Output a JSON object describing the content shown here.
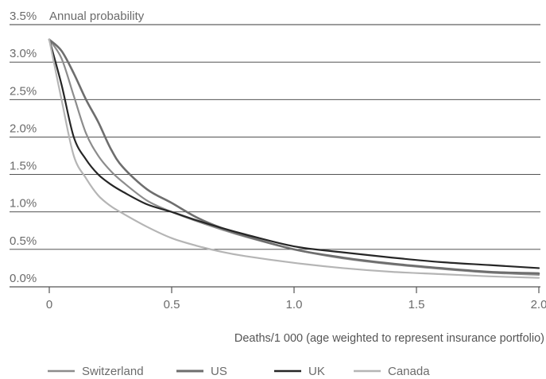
{
  "chart_data": {
    "type": "line",
    "ylabel": "Annual probability",
    "xlabel": "Deaths/1 000 (age weighted to represent insurance portfolio)",
    "xlim": [
      0,
      2.0
    ],
    "ylim": [
      0,
      3.5
    ],
    "x_ticks": [
      "0",
      "0.5",
      "1.0",
      "1.5",
      "2.0"
    ],
    "x_tick_values": [
      0,
      0.5,
      1.0,
      1.5,
      2.0
    ],
    "y_ticks": [
      "0.0%",
      "0.5%",
      "1.0%",
      "1.5%",
      "2.0%",
      "2.5%",
      "3.0%",
      "3.5%"
    ],
    "y_tick_values": [
      0,
      0.5,
      1.0,
      1.5,
      2.0,
      2.5,
      3.0,
      3.5
    ],
    "grid": "horizontal",
    "legend_position": "bottom",
    "series": [
      {
        "name": "Switzerland",
        "color": "#8c8c8c",
        "width": 2.2,
        "x": [
          0,
          0.05,
          0.1,
          0.15,
          0.2,
          0.25,
          0.3,
          0.4,
          0.5,
          0.6,
          0.7,
          0.8,
          1.0,
          1.2,
          1.4,
          1.6,
          1.8,
          2.0
        ],
        "y": [
          3.3,
          3.05,
          2.55,
          2.05,
          1.75,
          1.55,
          1.4,
          1.15,
          1.0,
          0.88,
          0.77,
          0.67,
          0.5,
          0.38,
          0.3,
          0.24,
          0.19,
          0.16
        ]
      },
      {
        "name": "US",
        "color": "#6e6e6e",
        "width": 2.6,
        "x": [
          0,
          0.05,
          0.1,
          0.15,
          0.2,
          0.25,
          0.3,
          0.4,
          0.5,
          0.6,
          0.7,
          0.8,
          1.0,
          1.2,
          1.4,
          1.6,
          1.8,
          2.0
        ],
        "y": [
          3.3,
          3.15,
          2.85,
          2.5,
          2.2,
          1.85,
          1.6,
          1.3,
          1.12,
          0.93,
          0.79,
          0.68,
          0.5,
          0.39,
          0.31,
          0.25,
          0.2,
          0.18
        ]
      },
      {
        "name": "UK",
        "color": "#262626",
        "width": 2.2,
        "x": [
          0,
          0.05,
          0.1,
          0.15,
          0.2,
          0.25,
          0.3,
          0.4,
          0.5,
          0.6,
          0.7,
          0.8,
          1.0,
          1.2,
          1.4,
          1.6,
          1.8,
          2.0
        ],
        "y": [
          3.3,
          2.7,
          2.0,
          1.7,
          1.5,
          1.37,
          1.27,
          1.1,
          1.0,
          0.89,
          0.79,
          0.7,
          0.54,
          0.46,
          0.39,
          0.33,
          0.29,
          0.25
        ]
      },
      {
        "name": "Canada",
        "color": "#b5b5b5",
        "width": 2.2,
        "x": [
          0,
          0.05,
          0.1,
          0.15,
          0.2,
          0.25,
          0.3,
          0.4,
          0.5,
          0.6,
          0.7,
          0.8,
          1.0,
          1.2,
          1.4,
          1.6,
          1.8,
          2.0
        ],
        "y": [
          3.3,
          2.5,
          1.75,
          1.45,
          1.22,
          1.08,
          0.98,
          0.8,
          0.65,
          0.55,
          0.47,
          0.41,
          0.32,
          0.25,
          0.2,
          0.17,
          0.14,
          0.12
        ]
      }
    ]
  }
}
